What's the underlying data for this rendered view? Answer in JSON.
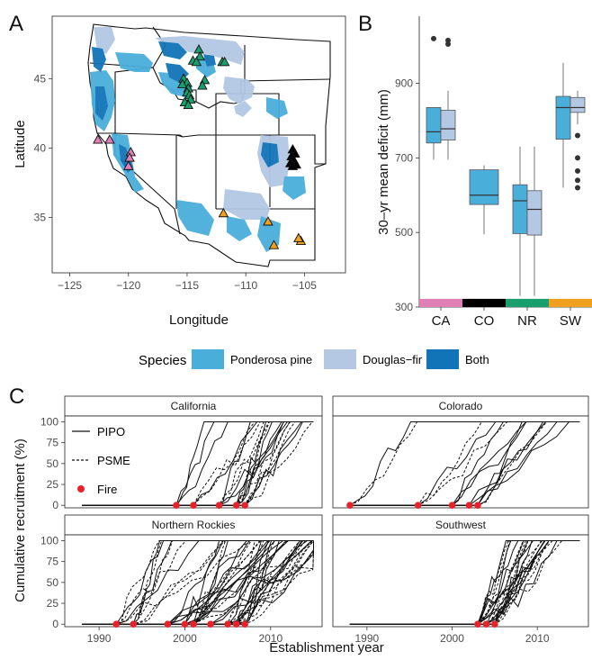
{
  "chart_data": [
    {
      "panel": "A",
      "type": "map",
      "xlabel": "Longitude",
      "ylabel": "Latitude",
      "xticks": [
        -125,
        -120,
        -115,
        -110,
        -105
      ],
      "yticks": [
        35,
        40,
        45
      ],
      "xlim": [
        -126.5,
        -101.5
      ],
      "ylim": [
        31,
        49.5
      ],
      "sites": {
        "CA": {
          "color": "#e07fb3",
          "points": [
            [
              -122.6,
              40.6
            ],
            [
              -121.6,
              40.6
            ],
            [
              -119.8,
              39.7
            ],
            [
              -119.9,
              39.3
            ],
            [
              -120.0,
              38.7
            ]
          ]
        },
        "NR": {
          "color": "#1a9e6e",
          "points": [
            [
              -114.0,
              47.1
            ],
            [
              -113.9,
              46.6
            ],
            [
              -114.5,
              46.3
            ],
            [
              -114.2,
              46.2
            ],
            [
              -112.0,
              46.2
            ],
            [
              -111.8,
              46.2
            ],
            [
              -115.3,
              45.0
            ],
            [
              -115.0,
              44.7
            ],
            [
              -115.4,
              44.6
            ],
            [
              -114.9,
              44.3
            ],
            [
              -115.0,
              44.0
            ],
            [
              -114.8,
              43.8
            ],
            [
              -114.7,
              43.5
            ],
            [
              -115.2,
              43.3
            ],
            [
              -114.9,
              43.1
            ],
            [
              -113.5,
              44.9
            ],
            [
              -113.7,
              44.5
            ]
          ]
        },
        "CO": {
          "color": "#000000",
          "points": [
            [
              -106.0,
              39.9
            ],
            [
              -105.8,
              39.6
            ],
            [
              -106.1,
              39.4
            ],
            [
              -105.9,
              39.1
            ],
            [
              -106.2,
              38.9
            ],
            [
              -105.7,
              38.8
            ],
            [
              -106.0,
              38.7
            ]
          ]
        },
        "SW": {
          "color": "#f0a01e",
          "points": [
            [
              -111.9,
              35.3
            ],
            [
              -108.1,
              34.7
            ],
            [
              -107.6,
              33.0
            ],
            [
              -105.3,
              33.3
            ],
            [
              -105.5,
              33.5
            ]
          ]
        }
      }
    },
    {
      "panel": "B",
      "type": "box",
      "ylabel": "30–yr mean deficit (mm)",
      "categories": [
        "CA",
        "CO",
        "NR",
        "SW"
      ],
      "yticks": [
        300,
        500,
        700,
        900
      ],
      "ylim": [
        300,
        1080
      ],
      "boxes": [
        {
          "region": "CA",
          "species": "Ponderosa pine",
          "q1": 740,
          "median": 770,
          "q3": 835,
          "lo": 695,
          "hi": 835,
          "outliers": [
            1020
          ]
        },
        {
          "region": "CA",
          "species": "Douglas-fir",
          "q1": 748,
          "median": 778,
          "q3": 828,
          "lo": 695,
          "hi": 880,
          "outliers": [
            1015,
            1005
          ]
        },
        {
          "region": "CO",
          "species": "Ponderosa pine",
          "q1": 575,
          "median": 600,
          "q3": 668,
          "lo": 495,
          "hi": 680,
          "outliers": []
        },
        {
          "region": "NR",
          "species": "Ponderosa pine",
          "q1": 497,
          "median": 585,
          "q3": 628,
          "lo": 330,
          "hi": 730,
          "outliers": []
        },
        {
          "region": "NR",
          "species": "Douglas-fir",
          "q1": 493,
          "median": 562,
          "q3": 612,
          "lo": 330,
          "hi": 730,
          "outliers": []
        },
        {
          "region": "SW",
          "species": "Ponderosa pine",
          "q1": 750,
          "median": 835,
          "q3": 865,
          "lo": 620,
          "hi": 955,
          "outliers": []
        },
        {
          "region": "SW",
          "species": "Douglas-fir",
          "q1": 822,
          "median": 835,
          "q3": 862,
          "lo": 790,
          "hi": 880,
          "outliers": [
            760,
            700,
            665,
            640,
            620
          ]
        }
      ],
      "region_colors": {
        "CA": "#e07fb3",
        "CO": "#000000",
        "NR": "#1a9e6e",
        "SW": "#f0a01e"
      }
    },
    {
      "panel": "C",
      "type": "line",
      "xlabel": "Establishment year",
      "ylabel": "Cumulative recruitment (%)",
      "xticks": [
        1990,
        2000,
        2010
      ],
      "yticks": [
        0,
        25,
        50,
        75,
        100
      ],
      "xlim": [
        1986,
        2016
      ],
      "ylim": [
        -3,
        107
      ],
      "facets": [
        "California",
        "Colorado",
        "Northern Rockies",
        "Southwest"
      ],
      "legend": [
        "PIPO",
        "PSME",
        "Fire"
      ],
      "fire_years": {
        "California": [
          1999,
          2001,
          2004,
          2006,
          2007
        ],
        "Colorado": [
          1988,
          1996,
          2000,
          2002,
          2003
        ],
        "Northern Rockies": [
          1992,
          1994,
          1998,
          2000,
          2001,
          2003,
          2005,
          2006,
          2007
        ],
        "Southwest": [
          2003,
          2004,
          2005
        ]
      }
    }
  ],
  "legend": {
    "title": "Species",
    "items": [
      {
        "label": "Ponderosa pine",
        "color": "#4aaedb"
      },
      {
        "label": "Douglas−fir",
        "color": "#b4c8e4"
      },
      {
        "label": "Both",
        "color": "#1173b8"
      }
    ]
  },
  "panel_letters": [
    "A",
    "B",
    "C"
  ]
}
